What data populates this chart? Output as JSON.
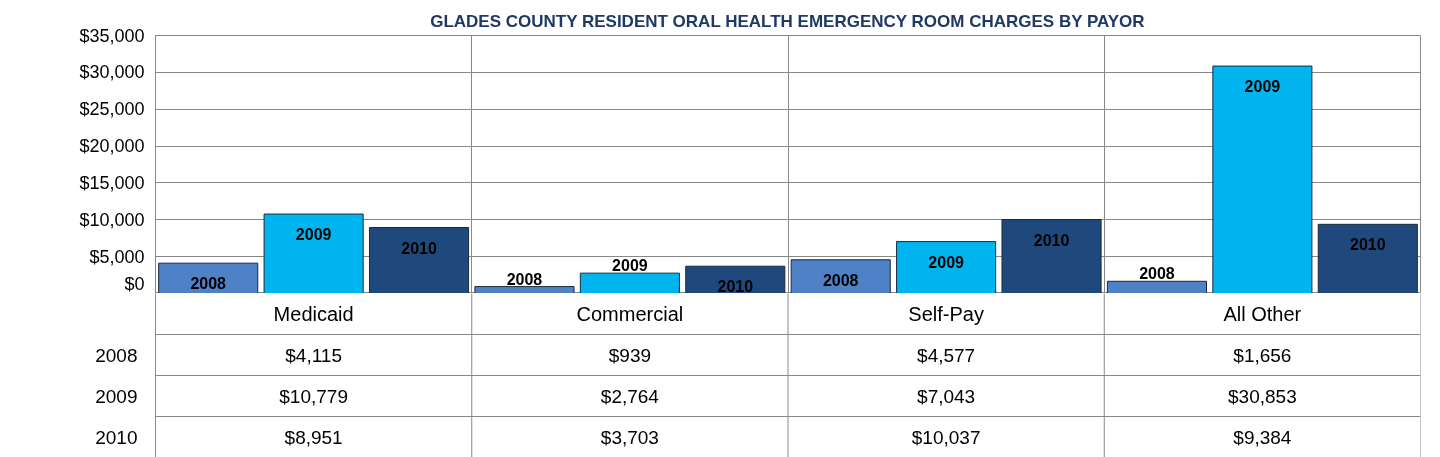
{
  "chart_data": {
    "type": "bar",
    "title": "GLADES COUNTY RESIDENT ORAL HEALTH EMERGENCY ROOM CHARGES BY PAYOR",
    "categories": [
      "Medicaid",
      "Commercial",
      "Self-Pay",
      "All Other"
    ],
    "series": [
      {
        "name": "2008",
        "color": "#4f81c7",
        "values": [
          4115,
          939,
          4577,
          1656
        ],
        "value_labels": [
          "$4,115",
          "$939",
          "$4,577",
          "$1,656"
        ]
      },
      {
        "name": "2009",
        "color": "#00b4f0",
        "values": [
          10779,
          2764,
          7043,
          30853
        ],
        "value_labels": [
          "$10,779",
          "$2,764",
          "$7,043",
          "$30,853"
        ]
      },
      {
        "name": "2010",
        "color": "#1f497d",
        "values": [
          8951,
          3703,
          10037,
          9384
        ],
        "value_labels": [
          "$8,951",
          "$3,703",
          "$10,037",
          "$9,384"
        ]
      }
    ],
    "ylim": [
      0,
      35000
    ],
    "yticks": [
      {
        "value": 0,
        "label": "$0"
      },
      {
        "value": 5000,
        "label": "$5,000"
      },
      {
        "value": 10000,
        "label": "$10,000"
      },
      {
        "value": 15000,
        "label": "$15,000"
      },
      {
        "value": 20000,
        "label": "$20,000"
      },
      {
        "value": 25000,
        "label": "$25,000"
      },
      {
        "value": 30000,
        "label": "$30,000"
      },
      {
        "value": 35000,
        "label": "$35,000"
      }
    ],
    "grid": true,
    "legend": false
  }
}
